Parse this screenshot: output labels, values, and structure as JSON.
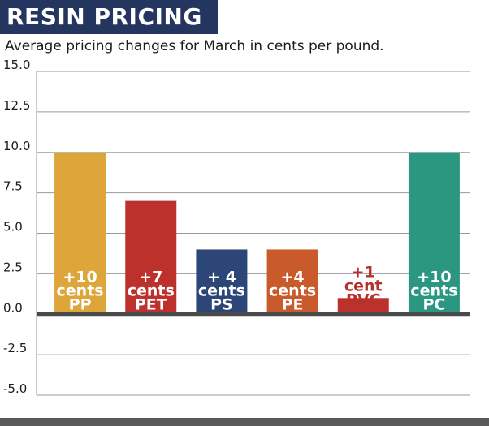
{
  "header": {
    "title": "RESIN PRICING",
    "subtitle": "Average pricing changes for March in cents per pound."
  },
  "colors": {
    "title_background": "#24355f",
    "axis": "#4a4a4a",
    "grid": "#9a9a9a",
    "bar_label": "#ffffff",
    "small_bar_label": "#b5322c"
  },
  "chart_data": {
    "type": "bar",
    "title": "",
    "xlabel": "",
    "ylabel": "",
    "ylim": [
      -5,
      15
    ],
    "yticks": [
      15,
      12.5,
      10,
      7.5,
      5,
      2.5,
      0,
      -2.5,
      -5
    ],
    "ytick_labels": [
      "15.0",
      "12.5",
      "10.0",
      "7.5",
      "5.0",
      "2.5",
      "0.0",
      "-2.5",
      "-5.0"
    ],
    "grid": true,
    "categories": [
      "PP",
      "PET",
      "PS",
      "PE",
      "PVC",
      "PC"
    ],
    "values": [
      10,
      7,
      4,
      4,
      1,
      10
    ],
    "bar_colors": [
      "#dda53a",
      "#bd312d",
      "#2b4677",
      "#c95a2c",
      "#bd312d",
      "#2b9780"
    ],
    "data_labels": [
      [
        "+10",
        "cents",
        "PP"
      ],
      [
        "+7",
        "cents",
        "PET"
      ],
      [
        "+ 4",
        "cents",
        "PS"
      ],
      [
        "+4",
        "cents",
        "PE"
      ],
      [
        "+1",
        "cent",
        "PVC"
      ],
      [
        "+10",
        "cents",
        "PC"
      ]
    ]
  }
}
